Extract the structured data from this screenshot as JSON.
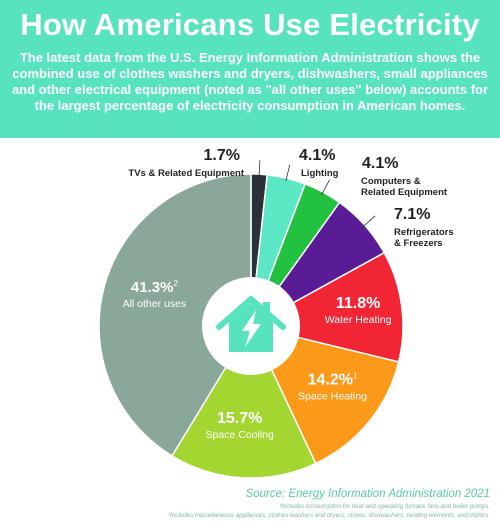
{
  "header": {
    "title": "How Americans Use Electricity",
    "intro": "The latest data from the U.S. Energy Information Administration shows the combined use of clothes washers and dryers, dishwashers, small appliances and other electrical equipment (noted as \"all other uses\" below) accounts for the largest percentage of electricity consumption in American homes."
  },
  "chart_data": {
    "type": "pie",
    "title": "How Americans Use Electricity",
    "unit": "%",
    "center_icon": "house-lightning-icon",
    "slices": [
      {
        "label": "TVs & Related Equipment",
        "value": 1.7,
        "display": "1.7%",
        "sup": "",
        "color": "#2b3038"
      },
      {
        "label": "Lighting",
        "value": 4.1,
        "display": "4.1%",
        "sup": "",
        "color": "#5ce7c5"
      },
      {
        "label": "Computers & Related Equipment",
        "value": 4.1,
        "display": "4.1%",
        "sup": "",
        "color": "#23c140"
      },
      {
        "label": "Refrigerators & Freezers",
        "value": 7.1,
        "display": "7.1%",
        "sup": "",
        "color": "#5a1b97"
      },
      {
        "label": "Water Heating",
        "value": 11.8,
        "display": "11.8%",
        "sup": "",
        "color": "#f22535"
      },
      {
        "label": "Space Heating",
        "value": 14.2,
        "display": "14.2%",
        "sup": "1",
        "color": "#fb9a18"
      },
      {
        "label": "Space Cooling",
        "value": 15.7,
        "display": "15.7%",
        "sup": "",
        "color": "#a4d631"
      },
      {
        "label": "All other uses",
        "value": 41.3,
        "display": "41.3%",
        "sup": "2",
        "color": "#8aa899"
      }
    ]
  },
  "footer": {
    "source": "Source: Energy Information Administration 2021",
    "footnote1": "¹Includes consumption for heat and operating furnace fans and boiler pumps.",
    "footnote2": "²Includes miscellaneous appliances, clothes washers and dryers, stoves, dishwashers, heating elements, and motors."
  }
}
